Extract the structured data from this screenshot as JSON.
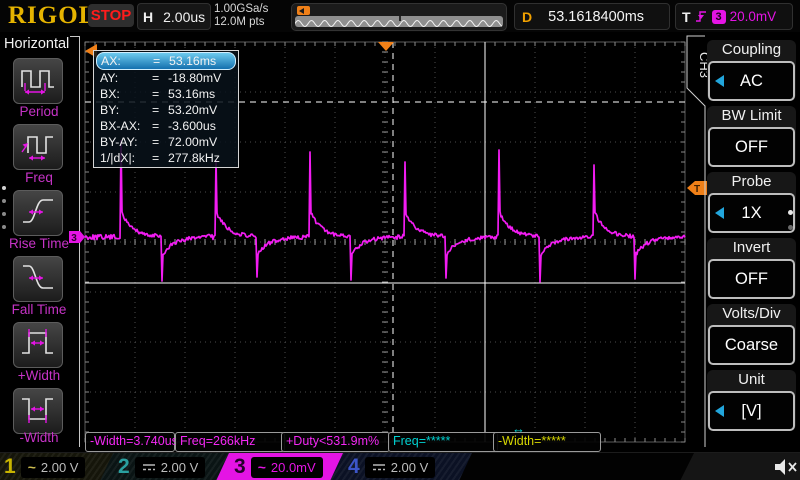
{
  "top_bar": {
    "logo": "RIGOL",
    "run_state": "STOP",
    "horizontal_label": "H",
    "timebase": "2.00us",
    "sample_rate": "1.00GSa/s",
    "memory_depth": "12.0M pts",
    "delay_label": "D",
    "delay_value": "53.1618400ms",
    "trigger_label": "T",
    "trigger_source": "3",
    "trigger_level": "20.0mV"
  },
  "left_menu": {
    "title": "Horizontal",
    "items": [
      {
        "label": "Period",
        "icon": "period-icon"
      },
      {
        "label": "Freq",
        "icon": "freq-icon"
      },
      {
        "label": "Rise Time",
        "icon": "rise-time-icon"
      },
      {
        "label": "Fall Time",
        "icon": "fall-time-icon"
      },
      {
        "label": "+Width",
        "icon": "plus-width-icon"
      },
      {
        "label": "-Width",
        "icon": "minus-width-icon"
      }
    ]
  },
  "cursor_panel": {
    "equals": "=",
    "rows": [
      {
        "label": "AX:",
        "value": "53.16ms",
        "selected": true
      },
      {
        "label": "AY:",
        "value": "-18.80mV",
        "selected": false
      },
      {
        "label": "BX:",
        "value": "53.16ms",
        "selected": false
      },
      {
        "label": "BY:",
        "value": "53.20mV",
        "selected": false
      },
      {
        "label": "BX-AX:",
        "value": "-3.600us",
        "selected": false
      },
      {
        "label": "BY-AY:",
        "value": "72.00mV",
        "selected": false
      },
      {
        "label": "1/|dX|:",
        "value": "277.8kHz",
        "selected": false
      }
    ]
  },
  "measure_bar": {
    "link_icon": "↔",
    "items": [
      {
        "text": "-Width=3.740us",
        "color": "#f428f4"
      },
      {
        "text": "Freq=266kHz",
        "color": "#f428f4"
      },
      {
        "text": "+Duty<531.9m%",
        "color": "#f428f4"
      },
      {
        "text": "Freq=*****",
        "color": "#00d2d2"
      },
      {
        "text": "-Width=*****",
        "color": "#d6d600"
      }
    ]
  },
  "right_menu": {
    "tab": "CH3",
    "items": [
      {
        "label": "Coupling",
        "value": "AC",
        "arrow": true
      },
      {
        "label": "BW Limit",
        "value": "OFF",
        "arrow": false
      },
      {
        "label": "Probe",
        "value": "1X",
        "arrow": true
      },
      {
        "label": "Invert",
        "value": "OFF",
        "arrow": false
      },
      {
        "label": "Volts/Div",
        "value": "Coarse",
        "arrow": false
      },
      {
        "label": "Unit",
        "value": "[V]",
        "arrow": true
      }
    ]
  },
  "channels": [
    {
      "number": "1",
      "coupling": "AC",
      "scale": "2.00 V",
      "color": "#c8b400",
      "selected": false
    },
    {
      "number": "2",
      "coupling": "DC",
      "scale": "2.00 V",
      "color": "#2aa0a0",
      "selected": false
    },
    {
      "number": "3",
      "coupling": "AC",
      "scale": "20.0mV",
      "color": "#e414e4",
      "selected": true
    },
    {
      "number": "4",
      "coupling": "DC",
      "scale": "2.00 V",
      "color": "#3c55c8",
      "selected": false
    }
  ],
  "grid_markers": {
    "trigger_level_tag": "T",
    "trigger_offscreen_tag": "T",
    "channel_tag": "3"
  },
  "colors": {
    "waveform": "#f21cf2",
    "accent_orange": "#f08018",
    "cursor": "#ffffff",
    "selected_row_blue": "#1470ae"
  }
}
